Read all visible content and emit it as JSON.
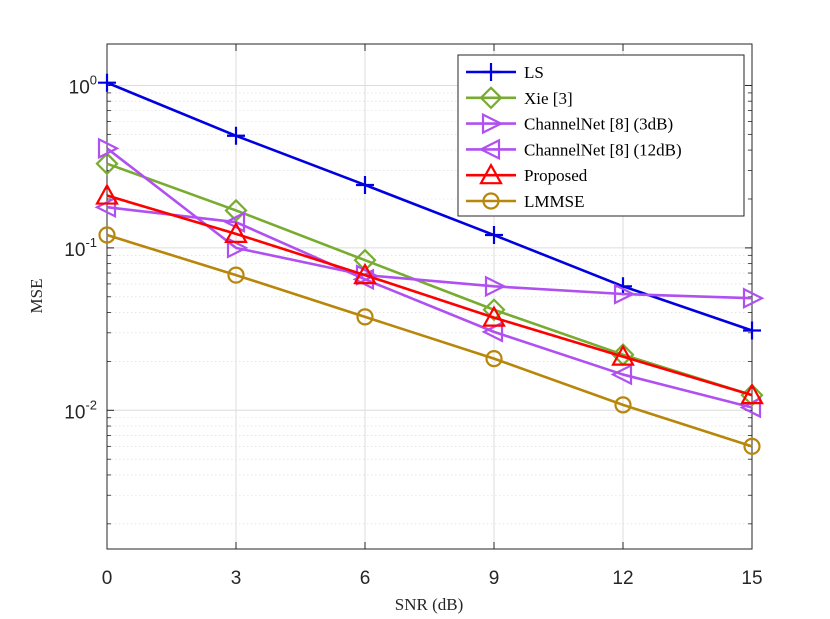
{
  "chart_data": {
    "type": "line",
    "xlabel": "SNR (dB)",
    "ylabel": "MSE",
    "xlim": [
      0,
      15
    ],
    "ylim": [
      0.0007,
      0.9
    ],
    "yscale": "log",
    "grid": true,
    "legend_position": "top-right",
    "x_ticks": [
      0,
      3,
      6,
      9,
      12,
      15
    ],
    "x_tick_labels": [
      "0",
      "3",
      "6",
      "9",
      "12",
      "15"
    ],
    "y_ticks": [
      {
        "value": 0.5,
        "base": "10",
        "exp": "0"
      },
      {
        "value": 0.05,
        "base": "10",
        "exp": "-1"
      },
      {
        "value": 0.005,
        "base": "10",
        "exp": "-2"
      }
    ],
    "x": [
      0,
      3,
      6,
      9,
      12,
      15
    ],
    "series": [
      {
        "name": "LS",
        "color": "#0000e0",
        "marker": "plus",
        "values": [
          0.52,
          0.245,
          0.122,
          0.06,
          0.029,
          0.0155
        ]
      },
      {
        "name": "Xie [3]",
        "color": "#77ac30",
        "marker": "diamond",
        "values": [
          0.165,
          0.085,
          0.042,
          0.0208,
          0.011,
          0.0062
        ]
      },
      {
        "name": "ChannelNet [8] (3dB)",
        "color": "#b050f0",
        "marker": "triangle-right",
        "values": [
          0.205,
          0.05,
          0.034,
          0.029,
          0.026,
          0.0245
        ]
      },
      {
        "name": "ChannelNet [8] (12dB)",
        "color": "#b050f0",
        "marker": "triangle-left",
        "values": [
          0.089,
          0.072,
          0.032,
          0.0152,
          0.0083,
          0.0052
        ]
      },
      {
        "name": "Proposed",
        "color": "#ff0000",
        "marker": "triangle-up",
        "values": [
          0.105,
          0.061,
          0.034,
          0.0186,
          0.0107,
          0.0062
        ]
      },
      {
        "name": "LMMSE",
        "color": "#b8860b",
        "marker": "circle",
        "values": [
          0.06,
          0.034,
          0.0188,
          0.0104,
          0.0054,
          0.003
        ]
      }
    ]
  }
}
